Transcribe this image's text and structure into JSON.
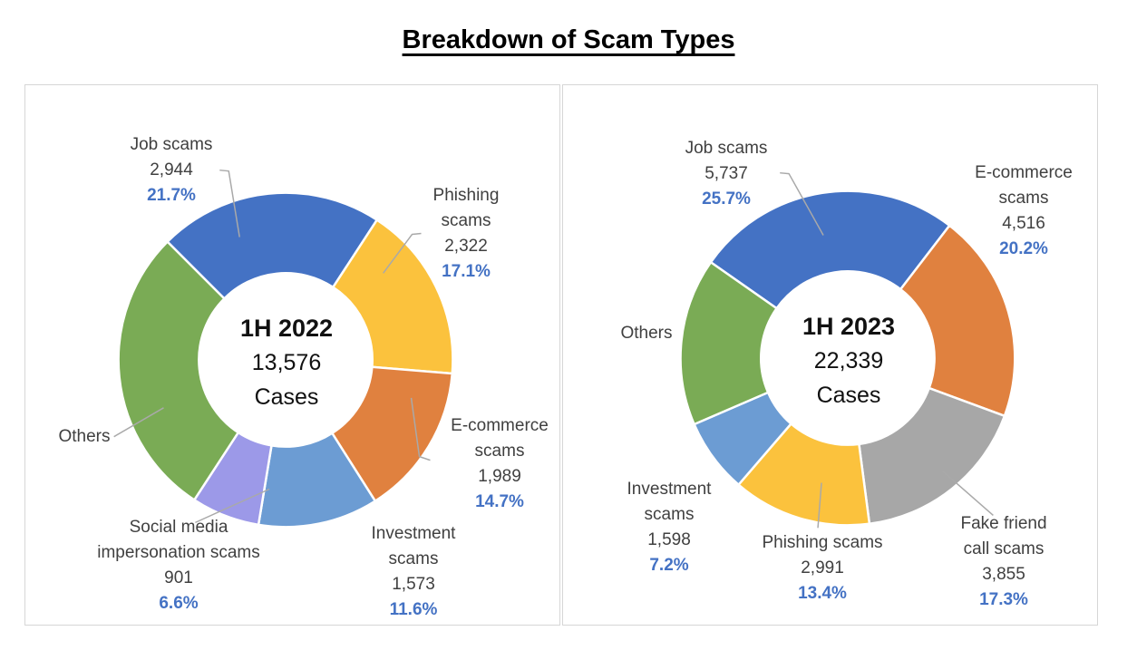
{
  "title": "Breakdown of Scam Types",
  "style_colors": {
    "pct_accent": "#4472C4",
    "label_text": "#404040",
    "leader_line": "#A9A9A9",
    "panel_border": "#D6D6D6"
  },
  "chart_data": [
    {
      "type": "pie",
      "subtype": "donut",
      "period": "1H 2022",
      "total_value": 13576,
      "total_text": "13,576",
      "unit_label": "Cases",
      "start_angle_deg": 315,
      "legend_position": "callout-labels",
      "slices": [
        {
          "label": "Job scams",
          "value": 2944,
          "value_text": "2,944",
          "pct": 21.7,
          "pct_text": "21.7%",
          "color": "#4472C4"
        },
        {
          "label": "Phishing scams",
          "value": 2322,
          "value_text": "2,322",
          "pct": 17.1,
          "pct_text": "17.1%",
          "color": "#FBC23D"
        },
        {
          "label": "E-commerce scams",
          "value": 1989,
          "value_text": "1,989",
          "pct": 14.7,
          "pct_text": "14.7%",
          "color": "#E0813F"
        },
        {
          "label": "Investment scams",
          "value": 1573,
          "value_text": "1,573",
          "pct": 11.6,
          "pct_text": "11.6%",
          "color": "#6C9CD3"
        },
        {
          "label": "Social media impersonation scams",
          "value": 901,
          "value_text": "901",
          "pct": 6.6,
          "pct_text": "6.6%",
          "color": "#9C99E8"
        },
        {
          "label": "Others",
          "value_text": "",
          "pct": 28.3,
          "pct_text": "",
          "color": "#7AAB55"
        }
      ]
    },
    {
      "type": "pie",
      "subtype": "donut",
      "period": "1H 2023",
      "total_value": 22339,
      "total_text": "22,339",
      "unit_label": "Cases",
      "start_angle_deg": 305,
      "legend_position": "callout-labels",
      "slices": [
        {
          "label": "Job scams",
          "value": 5737,
          "value_text": "5,737",
          "pct": 25.7,
          "pct_text": "25.7%",
          "color": "#4472C4"
        },
        {
          "label": "E-commerce scams",
          "value": 4516,
          "value_text": "4,516",
          "pct": 20.2,
          "pct_text": "20.2%",
          "color": "#E0813F"
        },
        {
          "label": "Fake friend call scams",
          "value": 3855,
          "value_text": "3,855",
          "pct": 17.3,
          "pct_text": "17.3%",
          "color": "#A7A7A7"
        },
        {
          "label": "Phishing scams",
          "value": 2991,
          "value_text": "2,991",
          "pct": 13.4,
          "pct_text": "13.4%",
          "color": "#FBC23D"
        },
        {
          "label": "Investment scams",
          "value": 1598,
          "value_text": "1,598",
          "pct": 7.2,
          "pct_text": "7.2%",
          "color": "#6C9CD3"
        },
        {
          "label": "Others",
          "value_text": "",
          "pct": 16.2,
          "pct_text": "",
          "color": "#7AAB55"
        }
      ]
    }
  ]
}
